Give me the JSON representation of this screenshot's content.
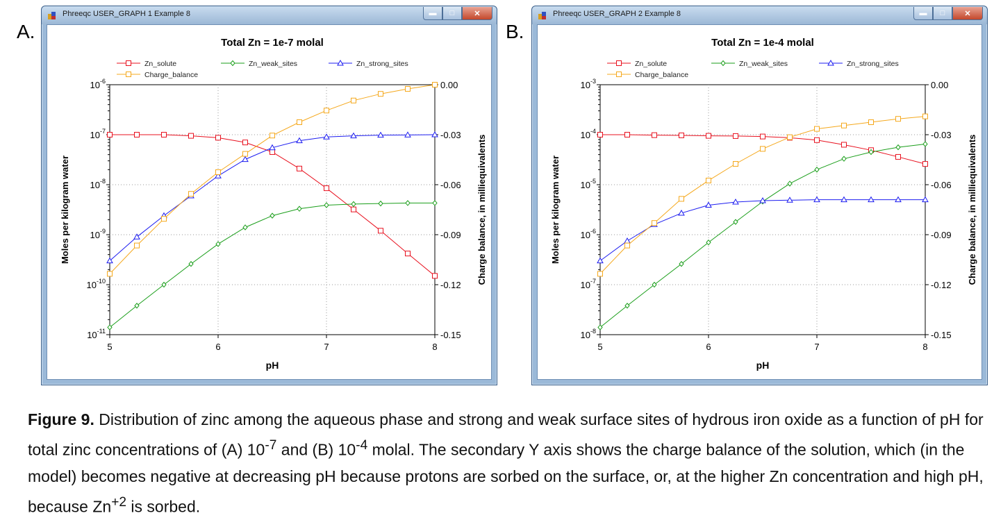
{
  "panels": [
    {
      "letter": "A.",
      "window_title": "Phreeqc USER_GRAPH 1 Example 8",
      "chart_data": {
        "type": "line",
        "title": "Total Zn = 1e-7 molal",
        "xlabel": "pH",
        "ylabel": "Moles per kilogram water",
        "y2label": "Charge balance, in milliequivalents",
        "xlim": [
          5,
          8
        ],
        "xticks": [
          5,
          6,
          7,
          8
        ],
        "y_scale": "log",
        "ylim_exp": [
          -11,
          -6
        ],
        "yticks_exp": [
          -11,
          -10,
          -9,
          -8,
          -7,
          -6
        ],
        "y2lim": [
          -0.15,
          0.0
        ],
        "y2ticks": [
          "0.00",
          "-0.03",
          "-0.06",
          "-0.09",
          "-0.12",
          "-0.15"
        ],
        "grid": "dotted",
        "legend_position": "top",
        "series": [
          {
            "name": "Zn_solute",
            "color": "#e8101e",
            "marker": "square",
            "axis": "y",
            "x": [
              5,
              5.25,
              5.5,
              5.75,
              6,
              6.25,
              6.5,
              6.75,
              7,
              7.25,
              7.5,
              7.75,
              8
            ],
            "y": [
              1e-07,
              1e-07,
              1e-07,
              9.5e-08,
              8.7e-08,
              7e-08,
              4.5e-08,
              2.1e-08,
              8.5e-09,
              3.2e-09,
              1.2e-09,
              4.2e-10,
              1.5e-10
            ]
          },
          {
            "name": "Zn_weak_sites",
            "color": "#1a9e1a",
            "marker": "diamond",
            "axis": "y",
            "x": [
              5,
              5.25,
              5.5,
              5.75,
              6,
              6.25,
              6.5,
              6.75,
              7,
              7.25,
              7.5,
              7.75,
              8
            ],
            "y": [
              1.4e-11,
              3.8e-11,
              1e-10,
              2.6e-10,
              6.5e-10,
              1.4e-09,
              2.4e-09,
              3.3e-09,
              3.9e-09,
              4.1e-09,
              4.2e-09,
              4.3e-09,
              4.3e-09
            ]
          },
          {
            "name": "Zn_strong_sites",
            "color": "#1c1cf0",
            "marker": "triangle",
            "axis": "y",
            "x": [
              5,
              5.25,
              5.5,
              5.75,
              6,
              6.25,
              6.5,
              6.75,
              7,
              7.25,
              7.5,
              7.75,
              8
            ],
            "y": [
              3e-10,
              9e-10,
              2.4e-09,
              6e-09,
              1.5e-08,
              3.2e-08,
              5.5e-08,
              7.6e-08,
              9e-08,
              9.5e-08,
              9.8e-08,
              9.9e-08,
              1e-07
            ]
          },
          {
            "name": "Charge_balance",
            "color": "#f5a81c",
            "marker": "square",
            "axis": "y2",
            "x": [
              5,
              5.25,
              5.5,
              5.75,
              6,
              6.25,
              6.5,
              6.75,
              7,
              7.25,
              7.5,
              7.75,
              8
            ],
            "y": [
              -0.1135,
              -0.0965,
              -0.0805,
              -0.0655,
              -0.0525,
              -0.0415,
              -0.0305,
              -0.0225,
              -0.0155,
              -0.0095,
              -0.0055,
              -0.0025,
              0.0
            ]
          }
        ]
      }
    },
    {
      "letter": "B.",
      "window_title": "Phreeqc USER_GRAPH 2 Example 8",
      "chart_data": {
        "type": "line",
        "title": "Total Zn = 1e-4 molal",
        "xlabel": "pH",
        "ylabel": "Moles per kilogram water",
        "y2label": "Charge balance, in milliequivalents",
        "xlim": [
          5,
          8
        ],
        "xticks": [
          5,
          6,
          7,
          8
        ],
        "y_scale": "log",
        "ylim_exp": [
          -8,
          -3
        ],
        "yticks_exp": [
          -8,
          -7,
          -6,
          -5,
          -4,
          -3
        ],
        "y2lim": [
          -0.15,
          0.0
        ],
        "y2ticks": [
          "0.00",
          "-0.03",
          "-0.06",
          "-0.09",
          "-0.12",
          "-0.15"
        ],
        "grid": "dotted",
        "legend_position": "top",
        "series": [
          {
            "name": "Zn_solute",
            "color": "#e8101e",
            "marker": "square",
            "axis": "y",
            "x": [
              5,
              5.25,
              5.5,
              5.75,
              6,
              6.25,
              6.5,
              6.75,
              7,
              7.25,
              7.5,
              7.75,
              8
            ],
            "y": [
              0.0001,
              0.0001,
              9.8e-05,
              9.7e-05,
              9.5e-05,
              9.4e-05,
              9.2e-05,
              8.7e-05,
              7.8e-05,
              6.3e-05,
              4.9e-05,
              3.6e-05,
              2.6e-05
            ]
          },
          {
            "name": "Zn_weak_sites",
            "color": "#1a9e1a",
            "marker": "diamond",
            "axis": "y",
            "x": [
              5,
              5.25,
              5.5,
              5.75,
              6,
              6.25,
              6.5,
              6.75,
              7,
              7.25,
              7.5,
              7.75,
              8
            ],
            "y": [
              1.4e-08,
              3.8e-08,
              1e-07,
              2.6e-07,
              7e-07,
              1.8e-06,
              4.6e-06,
              1.05e-05,
              2e-05,
              3.3e-05,
              4.5e-05,
              5.6e-05,
              6.5e-05
            ]
          },
          {
            "name": "Zn_strong_sites",
            "color": "#1c1cf0",
            "marker": "triangle",
            "axis": "y",
            "x": [
              5,
              5.25,
              5.5,
              5.75,
              6,
              6.25,
              6.5,
              6.75,
              7,
              7.25,
              7.5,
              7.75,
              8
            ],
            "y": [
              3e-07,
              7.5e-07,
              1.6e-06,
              2.7e-06,
              3.9e-06,
              4.5e-06,
              4.8e-06,
              4.9e-06,
              5e-06,
              5e-06,
              5e-06,
              5e-06,
              5e-06
            ]
          },
          {
            "name": "Charge_balance",
            "color": "#f5a81c",
            "marker": "square",
            "axis": "y2",
            "x": [
              5,
              5.25,
              5.5,
              5.75,
              6,
              6.25,
              6.5,
              6.75,
              7,
              7.25,
              7.5,
              7.75,
              8
            ],
            "y": [
              -0.1135,
              -0.0965,
              -0.083,
              -0.0685,
              -0.0575,
              -0.0475,
              -0.0385,
              -0.0315,
              -0.0265,
              -0.0245,
              -0.0225,
              -0.0205,
              -0.019
            ]
          }
        ]
      }
    }
  ],
  "caption": {
    "label": "Figure 9.",
    "text_1": " Distribution of zinc among the aqueous phase and strong and weak surface sites of hydrous iron oxide as a function of pH for total zinc concentrations of (A) 10",
    "sup_1": "-7",
    "text_2": " and (B) 10",
    "sup_2": "-4",
    "text_3": " molal. The secondary Y axis shows the charge balance of the solution, which (in the model) becomes negative at decreasing pH because protons are sorbed on the surface, or, at the higher Zn concentration and high pH, because Zn",
    "sup_3": "+2",
    "text_4": " is sorbed."
  }
}
